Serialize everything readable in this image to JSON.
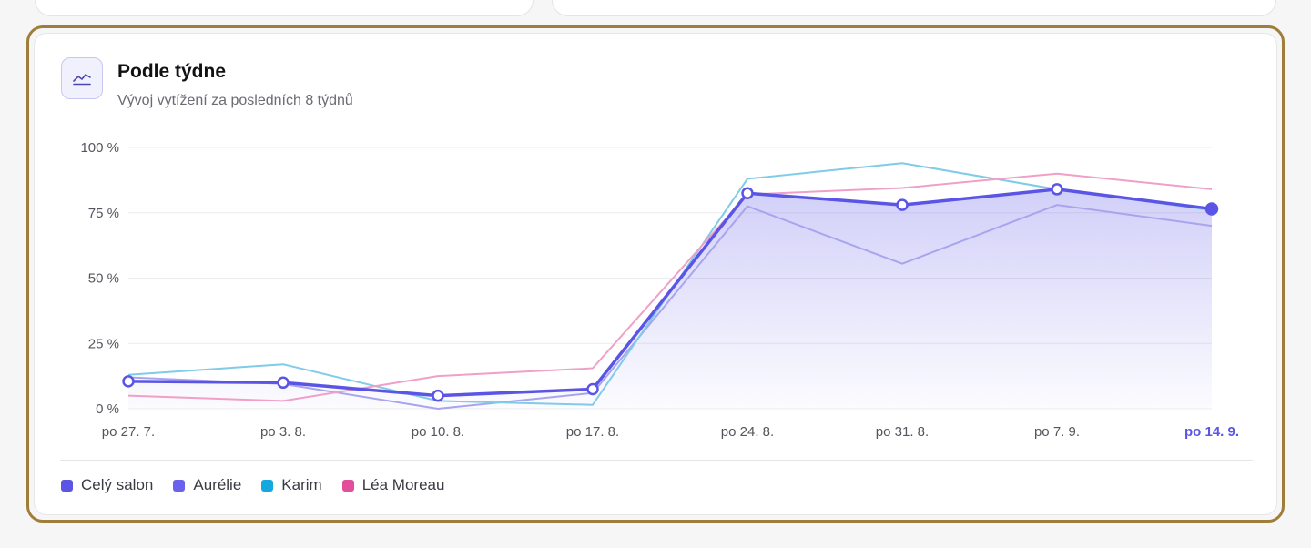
{
  "card": {
    "title": "Podle týdne",
    "subtitle": "Vývoj vytížení za posledních 8 týdnů",
    "icon": "line-chart-icon"
  },
  "colors": {
    "accent": "#5b55e6",
    "aurelie": "#a9a4ee",
    "karim": "#7fcbe8",
    "lea": "#f0a0c8",
    "frame": "#a07e3a"
  },
  "legend": [
    {
      "label": "Celý salon",
      "color": "#5b55e6"
    },
    {
      "label": "Aurélie",
      "color": "#6a62ec"
    },
    {
      "label": "Karim",
      "color": "#14a8e0"
    },
    {
      "label": "Léa Moreau",
      "color": "#e24e9a"
    }
  ],
  "chart_data": {
    "type": "line",
    "categories": [
      "po 27. 7.",
      "po 3. 8.",
      "po 10. 8.",
      "po 17. 8.",
      "po 24. 8.",
      "po 31. 8.",
      "po 7. 9.",
      "po 14. 9."
    ],
    "highlighted_category": "po 14. 9.",
    "ylim": [
      0,
      100
    ],
    "yticks": [
      0,
      25,
      50,
      75,
      100
    ],
    "ytick_labels": [
      "0 %",
      "25 %",
      "50 %",
      "75 %",
      "100 %"
    ],
    "grid": true,
    "series": [
      {
        "name": "Celý salon",
        "values": [
          10.5,
          10,
          5,
          7.5,
          82.5,
          78,
          84,
          76.5
        ]
      },
      {
        "name": "Aurélie",
        "values": [
          12,
          9.5,
          0,
          6,
          77.5,
          55.5,
          78,
          70
        ]
      },
      {
        "name": "Karim",
        "values": [
          13,
          17,
          3,
          1.5,
          88,
          94,
          84,
          76
        ]
      },
      {
        "name": "Léa Moreau",
        "values": [
          5,
          3,
          12.5,
          15.5,
          82,
          84.5,
          90,
          84
        ]
      }
    ]
  }
}
